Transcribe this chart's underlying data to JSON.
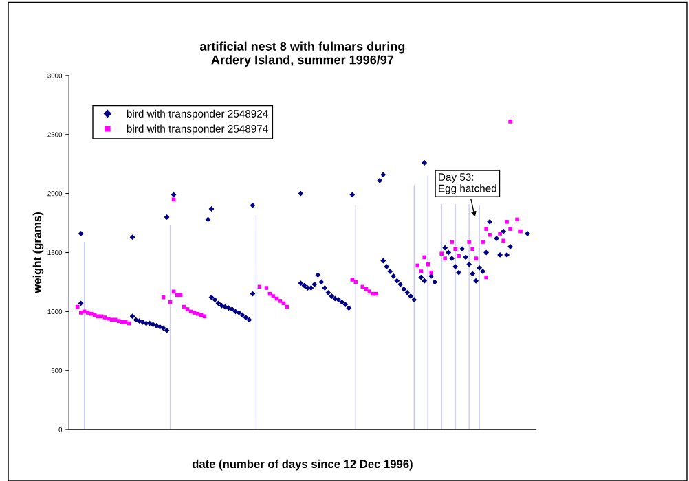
{
  "chart_data": {
    "type": "scatter",
    "title": "artificial nest 8 with fulmars during\nArdery Island, summer 1996/97",
    "xlabel": "date (number of days since 12 Dec 1996)",
    "ylabel": "weight (grams)",
    "categories": [
      null,
      null,
      null,
      null,
      null,
      null,
      null,
      null,
      null,
      null,
      null,
      null,
      null,
      null,
      null,
      null,
      null,
      null,
      null,
      null,
      null,
      null,
      null,
      null,
      null,
      null,
      null,
      null,
      null,
      null,
      null,
      null,
      null,
      null,
      null,
      null,
      null,
      null,
      null,
      null,
      null,
      null,
      null,
      null,
      null,
      null,
      null,
      null,
      null,
      null,
      null,
      null,
      null,
      null,
      null,
      null,
      null,
      null,
      null,
      null,
      null,
      null,
      null,
      null,
      null,
      null,
      null,
      null,
      null,
      null,
      null,
      null,
      null,
      null,
      null,
      null,
      null,
      null,
      null,
      null,
      null,
      null,
      null,
      null,
      null,
      null,
      null,
      null,
      null,
      null,
      null,
      null,
      null,
      null,
      null,
      null,
      null,
      null,
      null,
      null,
      null,
      null,
      null,
      null,
      null,
      null,
      null,
      null,
      null,
      null,
      null,
      null,
      null,
      null,
      null,
      null,
      null,
      null,
      null,
      null,
      null,
      null,
      null,
      null,
      null,
      null,
      null,
      null,
      null,
      null,
      null,
      null,
      null,
      null,
      null,
      null
    ],
    "series": [
      {
        "type": "bar",
        "color": "#ccccff",
        "values": [
          null,
          null,
          null,
          null,
          1590,
          null,
          null,
          null,
          null,
          null,
          null,
          null,
          null,
          null,
          null,
          null,
          null,
          null,
          null,
          null,
          null,
          null,
          null,
          null,
          null,
          null,
          null,
          null,
          null,
          1730,
          null,
          null,
          null,
          null,
          null,
          null,
          null,
          null,
          null,
          null,
          null,
          null,
          null,
          null,
          null,
          null,
          null,
          null,
          null,
          null,
          null,
          null,
          null,
          null,
          1820,
          null,
          null,
          null,
          null,
          null,
          null,
          null,
          null,
          null,
          null,
          null,
          null,
          null,
          null,
          null,
          null,
          null,
          null,
          null,
          null,
          null,
          null,
          null,
          null,
          null,
          null,
          null,
          null,
          1900,
          null,
          null,
          null,
          null,
          null,
          null,
          null,
          null,
          null,
          null,
          null,
          null,
          null,
          null,
          null,
          null,
          2070,
          null,
          null,
          null,
          2150,
          null,
          null,
          null,
          1910,
          null,
          null,
          null,
          1910,
          null,
          null,
          null,
          1910,
          null,
          null,
          1900,
          null,
          null,
          null,
          null,
          null,
          null,
          null,
          null,
          null,
          null,
          null,
          null,
          null,
          null,
          null,
          null
        ]
      },
      {
        "name": "bird with transponder 2548924",
        "color": "#000080",
        "marker": "diamond",
        "values": [
          null,
          null,
          null,
          1070,
          null,
          null,
          null,
          null,
          null,
          null,
          null,
          null,
          null,
          null,
          null,
          null,
          null,
          null,
          960,
          930,
          920,
          910,
          900,
          900,
          890,
          880,
          870,
          860,
          840,
          null,
          null,
          null,
          null,
          null,
          null,
          null,
          null,
          null,
          null,
          null,
          null,
          1120,
          1100,
          1070,
          1050,
          1040,
          1030,
          1020,
          1000,
          990,
          970,
          950,
          930,
          1150,
          null,
          null,
          null,
          null,
          null,
          null,
          null,
          null,
          null,
          null,
          null,
          null,
          null,
          1240,
          1220,
          1200,
          1200,
          1230,
          1310,
          1250,
          1200,
          1160,
          1130,
          1110,
          1100,
          1080,
          1060,
          1030,
          null,
          null,
          null,
          null,
          null,
          null,
          null,
          null,
          null,
          1430,
          1380,
          1340,
          1300,
          1260,
          1230,
          1190,
          1160,
          1130,
          1100,
          null,
          1290,
          1260,
          null,
          1300,
          1250,
          null,
          null,
          1540,
          1500,
          1450,
          1380,
          1330,
          1530,
          1460,
          1400,
          1320,
          1260,
          1370,
          1340,
          1500,
          1760,
          null,
          1620,
          1480,
          1680,
          1480,
          1550,
          null,
          null,
          null,
          null,
          null,
          null,
          null
        ]
      },
      {
        "color": "#000080",
        "marker": "diamond",
        "values": [
          null,
          null,
          null,
          1660,
          null,
          null,
          null,
          null,
          null,
          null,
          null,
          null,
          null,
          null,
          null,
          null,
          null,
          null,
          1630,
          null,
          null,
          null,
          null,
          null,
          null,
          null,
          null,
          null,
          1800,
          null,
          1990,
          null,
          null,
          null,
          null,
          null,
          null,
          null,
          null,
          null,
          1780,
          1870,
          null,
          null,
          null,
          null,
          null,
          null,
          null,
          null,
          null,
          null,
          null,
          1900,
          null,
          null,
          null,
          null,
          null,
          null,
          null,
          null,
          null,
          null,
          null,
          null,
          null,
          2000,
          null,
          null,
          null,
          null,
          null,
          null,
          null,
          null,
          null,
          null,
          null,
          null,
          null,
          null,
          1990,
          null,
          null,
          null,
          null,
          null,
          null,
          null,
          2110,
          2160,
          null,
          null,
          null,
          null,
          null,
          null,
          null,
          null,
          null,
          null,
          null,
          2260,
          null,
          null,
          null,
          null,
          null,
          null,
          null,
          null,
          null,
          null,
          null,
          null,
          null,
          null,
          null,
          null,
          null,
          null,
          null,
          null,
          null,
          null,
          null,
          null,
          null,
          null,
          null,
          null,
          null,
          1660,
          null,
          null
        ]
      },
      {
        "name": "bird with transponder 2548974",
        "color": "#ff00ff",
        "marker": "square",
        "values": [
          null,
          null,
          1040,
          990,
          1000,
          990,
          980,
          970,
          960,
          960,
          950,
          940,
          930,
          930,
          920,
          910,
          910,
          900,
          null,
          null,
          null,
          null,
          null,
          null,
          null,
          null,
          null,
          1120,
          null,
          1080,
          1170,
          1140,
          1140,
          1040,
          1020,
          1000,
          990,
          980,
          970,
          960,
          null,
          null,
          null,
          null,
          null,
          null,
          null,
          null,
          null,
          null,
          null,
          null,
          null,
          null,
          null,
          1210,
          null,
          1200,
          1150,
          1130,
          1110,
          1090,
          1070,
          1040,
          null,
          null,
          null,
          null,
          null,
          null,
          null,
          null,
          null,
          null,
          null,
          null,
          null,
          null,
          null,
          null,
          null,
          null,
          1270,
          1250,
          null,
          1210,
          1190,
          1170,
          1150,
          1150,
          null,
          null,
          null,
          null,
          null,
          null,
          null,
          null,
          null,
          null,
          null,
          1390,
          1340,
          1460,
          1400,
          1330,
          null,
          null,
          1490,
          1450,
          null,
          1590,
          1530,
          1470,
          null,
          null,
          1590,
          1530,
          1450,
          null,
          1590,
          1700,
          1650,
          null,
          null,
          1660,
          1600,
          1760,
          1700,
          null,
          1780,
          1680,
          null,
          null,
          null,
          null
        ]
      },
      {
        "color": "#ff00ff",
        "marker": "square",
        "values": [
          null,
          null,
          null,
          null,
          null,
          null,
          null,
          null,
          null,
          null,
          null,
          null,
          null,
          null,
          null,
          null,
          null,
          null,
          null,
          null,
          null,
          null,
          null,
          null,
          null,
          null,
          null,
          null,
          null,
          null,
          1950,
          null,
          null,
          null,
          null,
          null,
          null,
          null,
          null,
          null,
          null,
          null,
          null,
          null,
          null,
          null,
          null,
          null,
          null,
          null,
          null,
          null,
          null,
          null,
          null,
          null,
          null,
          null,
          null,
          null,
          null,
          null,
          null,
          null,
          null,
          null,
          null,
          null,
          null,
          null,
          null,
          null,
          null,
          null,
          null,
          null,
          null,
          null,
          null,
          null,
          null,
          null,
          null,
          null,
          null,
          null,
          null,
          null,
          null,
          null,
          null,
          null,
          null,
          null,
          null,
          null,
          null,
          null,
          null,
          null,
          null,
          null,
          null,
          null,
          null,
          null,
          null,
          null,
          null,
          null,
          null,
          null,
          null,
          null,
          null,
          null,
          null,
          null,
          null,
          null,
          null,
          1290,
          null,
          null,
          null,
          null,
          null,
          null,
          2610,
          null,
          null,
          null,
          null,
          null,
          null,
          null
        ]
      }
    ],
    "ylim": [
      0,
      3000
    ],
    "yticks": [
      0,
      500,
      1000,
      1500,
      2000,
      2500,
      3000
    ],
    "annotations": [
      "Day 53:\nEgg hatched"
    ],
    "legend": "top left",
    "grid": false
  }
}
